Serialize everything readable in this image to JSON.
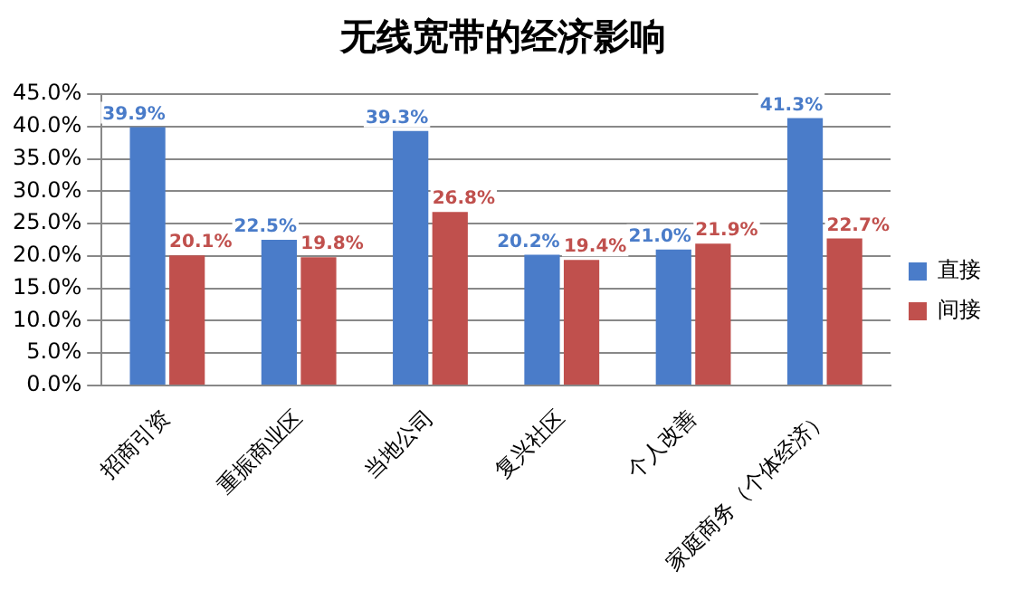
{
  "chart_data": {
    "type": "bar",
    "title": "无线宽带的经济影响",
    "categories": [
      "招商引资",
      "重振商业区",
      "当地公司",
      "复兴社区",
      "个人改善",
      "家庭商务（个体经济）"
    ],
    "series": [
      {
        "name": "直接",
        "color": "#4a7cc9",
        "values": [
          39.9,
          22.5,
          39.3,
          20.2,
          21.0,
          41.3
        ],
        "value_labels": [
          "39.9%",
          "22.5%",
          "39.3%",
          "20.2%",
          "21.0%",
          "41.3%"
        ]
      },
      {
        "name": "间接",
        "color": "#c0504d",
        "values": [
          20.1,
          19.8,
          26.8,
          19.4,
          21.9,
          22.7
        ],
        "value_labels": [
          "20.1%",
          "19.8%",
          "26.8%",
          "19.4%",
          "21.9%",
          "22.7%"
        ]
      }
    ],
    "ylim": [
      0,
      45
    ],
    "yticks": [
      {
        "value": 0,
        "label": "0.0%"
      },
      {
        "value": 5,
        "label": "5.0%"
      },
      {
        "value": 10,
        "label": "10.0%"
      },
      {
        "value": 15,
        "label": "15.0%"
      },
      {
        "value": 20,
        "label": "20.0%"
      },
      {
        "value": 25,
        "label": "25.0%"
      },
      {
        "value": 30,
        "label": "30.0%"
      },
      {
        "value": 35,
        "label": "35.0%"
      },
      {
        "value": 40,
        "label": "40.0%"
      },
      {
        "value": 45,
        "label": "45.0%"
      }
    ],
    "grid": "y",
    "legend": "right"
  }
}
